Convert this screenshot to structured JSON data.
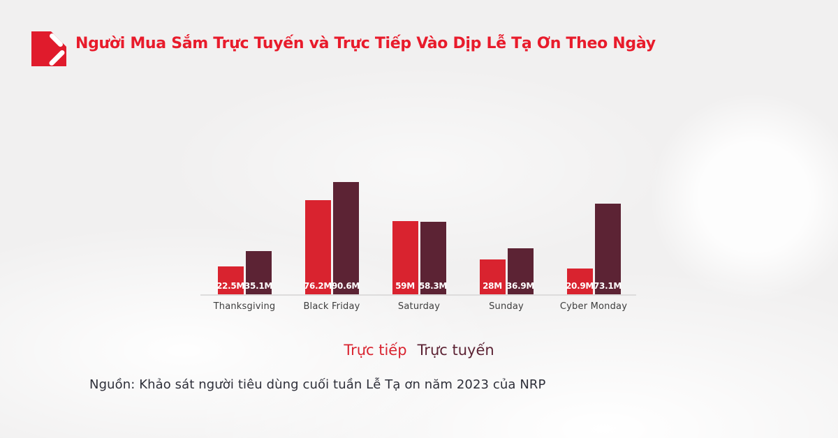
{
  "header": {
    "logo": {
      "name": "red-square-chevron-logo",
      "color": "#e01b2c"
    }
  },
  "chart_data": {
    "type": "bar",
    "title": "Người Mua Sắm Trực Tuyến và Trực Tiếp Vào Dịp Lễ Tạ Ơn Theo Ngày",
    "title_color": "#e81b2b",
    "categories": [
      "Thanksgiving",
      "Black Friday",
      "Saturday",
      "Sunday",
      "Cyber Monday"
    ],
    "series": [
      {
        "name": "Trực tiếp",
        "color": "#d9232f",
        "values": [
          22.5,
          76.2,
          59,
          28,
          20.9
        ],
        "labels": [
          "22.5M",
          "76.2M",
          "59M",
          "28M",
          "20.9M"
        ]
      },
      {
        "name": "Trực tuyến",
        "color": "#5c2334",
        "values": [
          35.1,
          90.6,
          58.3,
          36.9,
          73.1
        ],
        "labels": [
          "35.1M",
          "90.6M",
          "58.3M",
          "36.9M",
          "73.1M"
        ]
      }
    ],
    "unit": "M",
    "ylim": [
      0,
      95
    ],
    "axes_hidden": true,
    "grid": false,
    "legend_position": "bottom-center",
    "value_label_color": "#ffffff",
    "category_label_color": "#3d3d3d",
    "baseline_color": "#dddcdc"
  },
  "source": {
    "text": "Nguồn: Khảo sát người tiêu dùng cuối tuần Lễ Tạ ơn năm 2023 của NRP"
  }
}
